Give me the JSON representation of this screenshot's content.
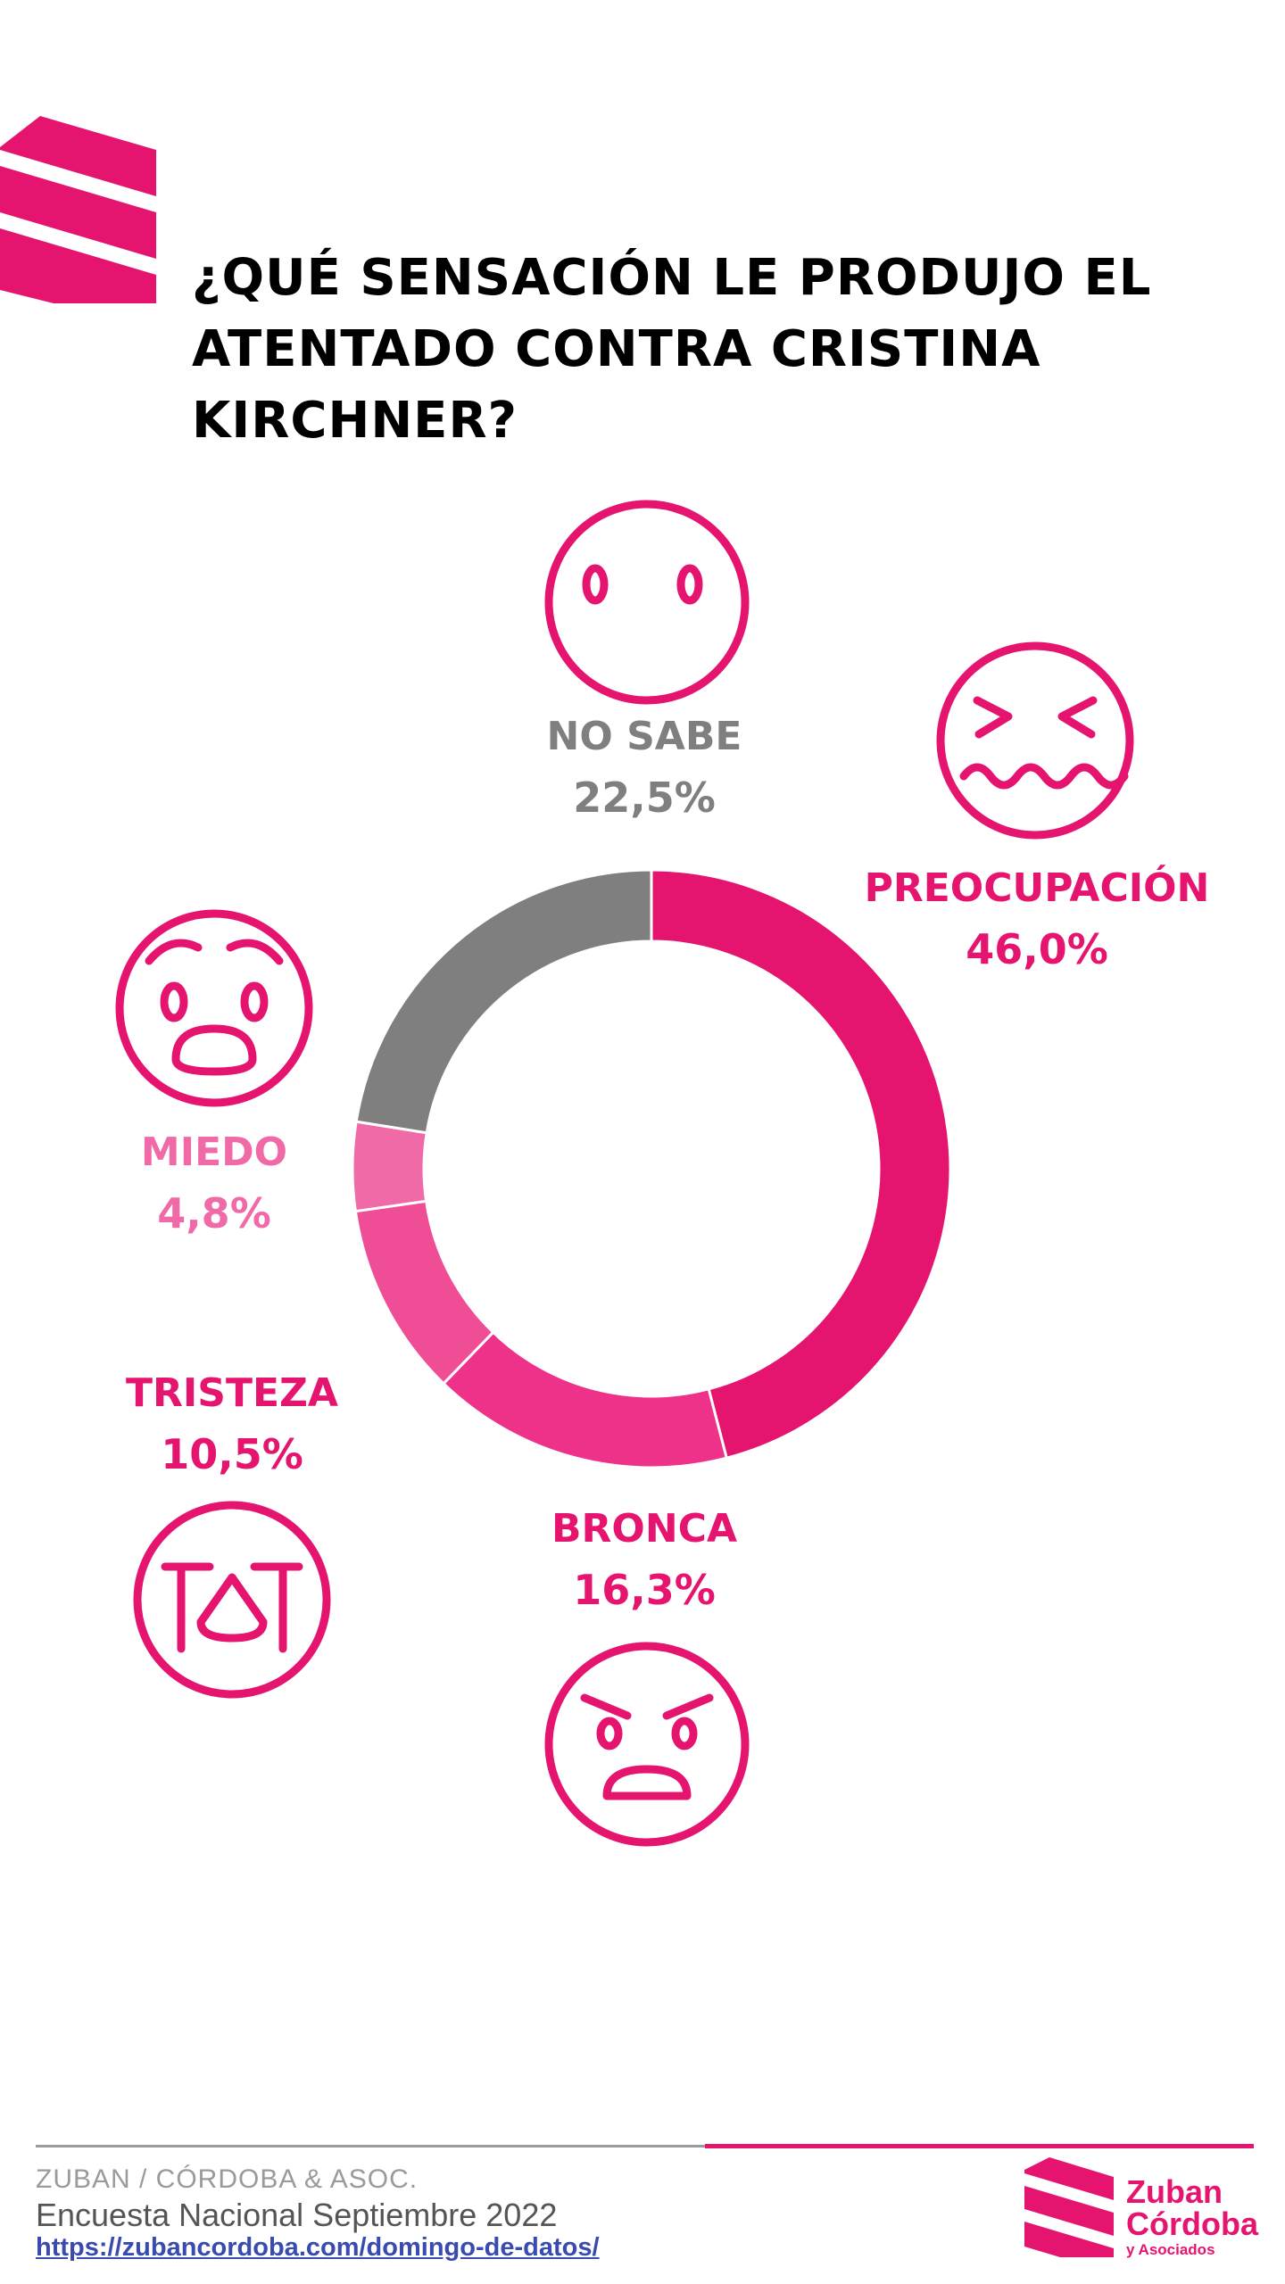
{
  "title": "¿QUÉ SENSACIÓN LE PRODUJO EL ATENTADO CONTRA CRISTINA KIRCHNER?",
  "colors": {
    "preocupacion": "#e5146f",
    "bronca": "#ee3189",
    "tristeza": "#f04d97",
    "miedo": "#f16aa8",
    "no_sabe": "#7f7f7f",
    "title": "#000000",
    "accent": "#e5146f"
  },
  "chart_data": {
    "type": "pie",
    "variant": "donut",
    "title": "¿QUÉ SENSACIÓN LE PRODUJO EL ATENTADO CONTRA CRISTINA KIRCHNER?",
    "categories": [
      "PREOCUPACIÓN",
      "BRONCA",
      "TRISTEZA",
      "MIEDO",
      "NO SABE"
    ],
    "values": [
      46.0,
      16.3,
      10.5,
      4.8,
      22.5
    ],
    "value_labels": [
      "46,0%",
      "16,3%",
      "10,5%",
      "4,8%",
      "22,5%"
    ],
    "units": "%"
  },
  "slices": [
    {
      "key": "preocupacion",
      "name": "PREOCUPACIÓN",
      "pct": "46,0%",
      "color": "#e5146f",
      "icon": "worried-face-icon"
    },
    {
      "key": "bronca",
      "name": "BRONCA",
      "pct": "16,3%",
      "color": "#ee3189",
      "icon": "angry-face-icon"
    },
    {
      "key": "tristeza",
      "name": "TRISTEZA",
      "pct": "10,5%",
      "color": "#f04d97",
      "icon": "crying-face-icon"
    },
    {
      "key": "miedo",
      "name": "MIEDO",
      "pct": "4,8%",
      "color": "#f16aa8",
      "icon": "fearful-face-icon"
    },
    {
      "key": "no_sabe",
      "name": "NO SABE",
      "pct": "22,5%",
      "color": "#7f7f7f",
      "icon": "blank-face-icon"
    }
  ],
  "footer": {
    "org": "ZUBAN / CÓRDOBA & ASOC.",
    "survey": "Encuesta Nacional Septiembre 2022",
    "link": "https://zubancordoba.com/domingo-de-datos/"
  },
  "logo": {
    "line1": "Zuban",
    "line2": "Córdoba",
    "line3": "y Asociados"
  }
}
